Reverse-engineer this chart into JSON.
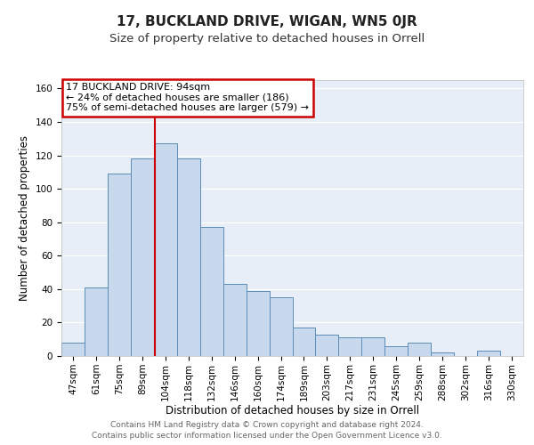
{
  "title": "17, BUCKLAND DRIVE, WIGAN, WN5 0JR",
  "subtitle": "Size of property relative to detached houses in Orrell",
  "xlabel": "Distribution of detached houses by size in Orrell",
  "ylabel": "Number of detached properties",
  "bar_labels": [
    "47sqm",
    "61sqm",
    "75sqm",
    "89sqm",
    "104sqm",
    "118sqm",
    "132sqm",
    "146sqm",
    "160sqm",
    "174sqm",
    "189sqm",
    "203sqm",
    "217sqm",
    "231sqm",
    "245sqm",
    "259sqm",
    "288sqm",
    "302sqm",
    "316sqm",
    "330sqm"
  ],
  "bar_heights": [
    8,
    41,
    109,
    118,
    127,
    118,
    77,
    43,
    39,
    35,
    17,
    13,
    11,
    11,
    6,
    8,
    2,
    0,
    3,
    0
  ],
  "bar_color": "#c9d9ed",
  "bar_edge_color": "#5b8db8",
  "ylim": [
    0,
    165
  ],
  "yticks": [
    0,
    20,
    40,
    60,
    80,
    100,
    120,
    140,
    160
  ],
  "vline_x": 3.55,
  "annotation_title": "17 BUCKLAND DRIVE: 94sqm",
  "annotation_line1": "← 24% of detached houses are smaller (186)",
  "annotation_line2": "75% of semi-detached houses are larger (579) →",
  "annotation_box_color": "#ffffff",
  "annotation_box_edge_color": "#cc0000",
  "vline_color": "#cc0000",
  "footer1": "Contains HM Land Registry data © Crown copyright and database right 2024.",
  "footer2": "Contains public sector information licensed under the Open Government Licence v3.0.",
  "background_color": "#e8eef8",
  "fig_background": "#ffffff",
  "grid_color": "#ffffff",
  "title_fontsize": 11,
  "subtitle_fontsize": 9.5,
  "axis_label_fontsize": 8.5,
  "tick_fontsize": 7.5,
  "annotation_fontsize": 8,
  "footer_fontsize": 6.5
}
